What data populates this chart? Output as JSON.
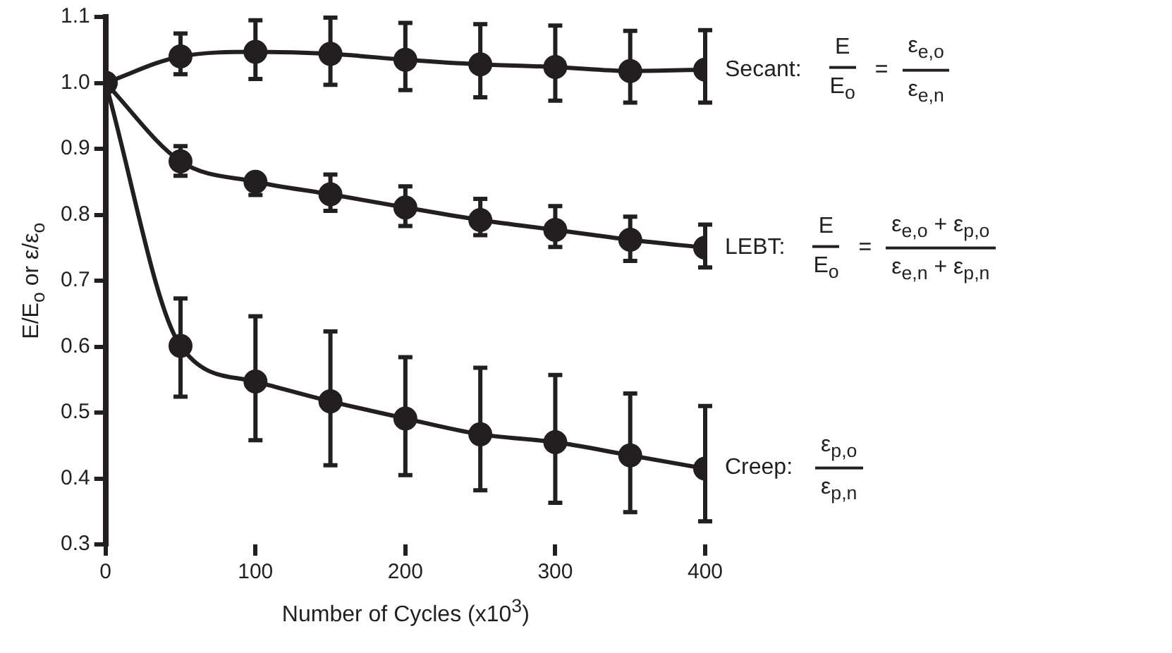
{
  "chart_data": {
    "type": "line",
    "xlabel": "Number of Cycles (x10$^{3}$)",
    "ylabel": "E/E$_{o}$ or ε/ε$_{o}$",
    "x": [
      0,
      50,
      100,
      150,
      200,
      250,
      300,
      350,
      400
    ],
    "xlim": [
      0,
      400
    ],
    "xticks": [
      0,
      100,
      200,
      300,
      400
    ],
    "ylim": [
      0.3,
      1.1
    ],
    "yticks": [
      0.3,
      0.4,
      0.5,
      0.6,
      0.7,
      0.8,
      0.9,
      {
        "value": 1,
        "label": "1.0"
      },
      1.1
    ],
    "grid": false,
    "legend": "right",
    "marker": "circle",
    "line_style": "solid",
    "series": [
      {
        "name": "Secant:",
        "color": "#231f20",
        "values": [
          1.0,
          1.04,
          1.047,
          1.044,
          1.035,
          1.028,
          1.024,
          1.018,
          1.02
        ],
        "errors": [
          null,
          [
            1.013,
            1.075
          ],
          [
            1.006,
            1.095
          ],
          [
            0.997,
            1.099
          ],
          [
            0.989,
            1.091
          ],
          [
            0.978,
            1.089
          ],
          [
            0.973,
            1.087
          ],
          [
            0.97,
            1.079
          ],
          [
            0.97,
            1.08
          ]
        ]
      },
      {
        "name": "LEBT:",
        "color": "#231f20",
        "values": [
          1.0,
          0.881,
          0.85,
          0.831,
          0.811,
          0.792,
          0.777,
          0.762,
          0.75
        ],
        "errors": [
          null,
          [
            0.859,
            0.904
          ],
          [
            0.83,
            0.861
          ],
          [
            0.806,
            0.861
          ],
          [
            0.783,
            0.843
          ],
          [
            0.769,
            0.824
          ],
          [
            0.751,
            0.813
          ],
          [
            0.73,
            0.797
          ],
          [
            0.72,
            0.785
          ]
        ]
      },
      {
        "name": "Creep:",
        "color": "#231f20",
        "values": [
          1.0,
          0.601,
          0.547,
          0.517,
          0.491,
          0.467,
          0.455,
          0.435,
          0.415
        ],
        "errors": [
          null,
          [
            0.524,
            0.673
          ],
          [
            0.458,
            0.646
          ],
          [
            0.42,
            0.623
          ],
          [
            0.405,
            0.584
          ],
          [
            0.382,
            0.568
          ],
          [
            0.363,
            0.557
          ],
          [
            0.349,
            0.529
          ],
          [
            0.335,
            0.51
          ]
        ]
      }
    ],
    "annotations": [
      "E\nE$_{o}$",
      "=",
      "ε$_{e,o}$\nε$_{e,n}$",
      "E\nE$_{o}$",
      "=",
      "ε$_{e,o}$ + ε$_{p,o}$\nε$_{e,n}$ + ε$_{p,n}$",
      "ε$_{p,o}$\nε$_{p,n}$"
    ]
  }
}
